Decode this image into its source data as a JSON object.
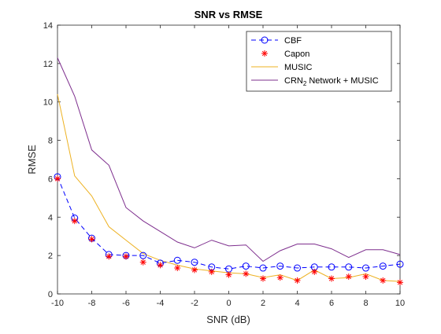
{
  "chart_data": {
    "type": "line",
    "title": "SNR vs RMSE",
    "xlabel": "SNR (dB)",
    "ylabel": "RMSE",
    "xlim": [
      -10,
      10
    ],
    "ylim": [
      0,
      14
    ],
    "xticks": [
      -10,
      -8,
      -6,
      -4,
      -2,
      0,
      2,
      4,
      6,
      8,
      10
    ],
    "yticks": [
      0,
      2,
      4,
      6,
      8,
      10,
      12,
      14
    ],
    "grid": false,
    "legend_position": "top-right",
    "x": [
      -10,
      -9,
      -8,
      -7,
      -6,
      -5,
      -4,
      -3,
      -2,
      -1,
      0,
      1,
      2,
      3,
      4,
      5,
      6,
      7,
      8,
      9,
      10
    ],
    "series": [
      {
        "name": "CBF",
        "style": "dashed-circle",
        "color": "#0000ff",
        "values": [
          6.1,
          3.95,
          2.9,
          2.05,
          2.0,
          2.0,
          1.6,
          1.75,
          1.65,
          1.4,
          1.3,
          1.45,
          1.35,
          1.45,
          1.35,
          1.4,
          1.4,
          1.4,
          1.35,
          1.45,
          1.55
        ]
      },
      {
        "name": "Capon",
        "style": "star-markers",
        "color": "#ff0000",
        "values": [
          6.0,
          3.8,
          2.85,
          1.95,
          1.95,
          1.65,
          1.5,
          1.35,
          1.25,
          1.15,
          1.0,
          1.05,
          0.8,
          0.85,
          0.7,
          1.15,
          0.8,
          0.9,
          0.9,
          0.7,
          0.6
        ]
      },
      {
        "name": "MUSIC",
        "style": "solid",
        "color": "#edb120",
        "values": [
          10.4,
          6.15,
          5.1,
          3.5,
          2.8,
          2.1,
          1.75,
          1.5,
          1.3,
          1.2,
          1.1,
          1.05,
          0.85,
          1.0,
          0.7,
          1.25,
          0.8,
          0.85,
          1.05,
          0.7,
          0.65
        ]
      },
      {
        "name_main": "CRN",
        "name_sub": "2",
        "name_rest": " Network + MUSIC",
        "style": "solid",
        "color": "#7e2f8e",
        "values": [
          12.3,
          10.3,
          7.5,
          6.7,
          4.5,
          3.8,
          3.25,
          2.7,
          2.4,
          2.8,
          2.5,
          2.55,
          1.7,
          2.25,
          2.6,
          2.6,
          2.35,
          1.9,
          2.3,
          2.3,
          2.05
        ]
      }
    ]
  }
}
